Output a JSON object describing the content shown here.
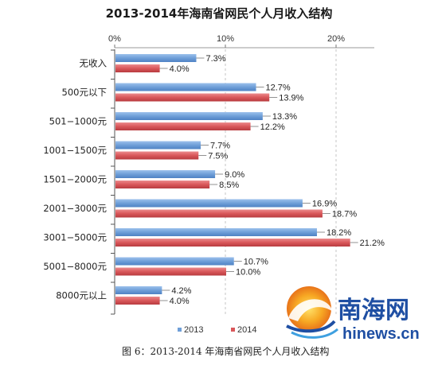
{
  "chart_data": {
    "type": "bar",
    "orientation": "horizontal",
    "title": "2013-2014年海南省网民个人月收入结构",
    "categories": [
      "无收入",
      "500元以下",
      "501−1000元",
      "1001−1500元",
      "1501−2000元",
      "2001−3000元",
      "3001−5000元",
      "5001−8000元",
      "8000元以上"
    ],
    "series": [
      {
        "name": "2013",
        "color": "#6f9fd8",
        "values": [
          7.3,
          12.7,
          13.3,
          7.7,
          9.0,
          16.9,
          18.2,
          10.7,
          4.2
        ],
        "labels": [
          "7.3%",
          "12.7%",
          "13.3%",
          "7.7%",
          "9.0%",
          "16.9%",
          "18.2%",
          "10.7%",
          "4.2%"
        ]
      },
      {
        "name": "2014",
        "color": "#d9575a",
        "values": [
          4.0,
          13.9,
          12.2,
          7.5,
          8.5,
          18.7,
          21.2,
          10.0,
          4.0
        ],
        "labels": [
          "4.0%",
          "13.9%",
          "12.2%",
          "7.5%",
          "8.5%",
          "18.7%",
          "21.2%",
          "10.0%",
          "4.0%"
        ]
      }
    ],
    "xlim": [
      0,
      24
    ],
    "xticks": [
      0,
      10,
      20
    ],
    "xtick_labels": [
      "0%",
      "10%",
      "20%"
    ],
    "xlabel": "",
    "ylabel": "",
    "grid": "vertical dashed",
    "legend_position": "bottom",
    "axis_position": "top"
  },
  "caption": "图 6：2013-2014 年海南省网民个人月收入结构",
  "watermark": {
    "main": "南海网",
    "sub": "hinews.cn"
  }
}
